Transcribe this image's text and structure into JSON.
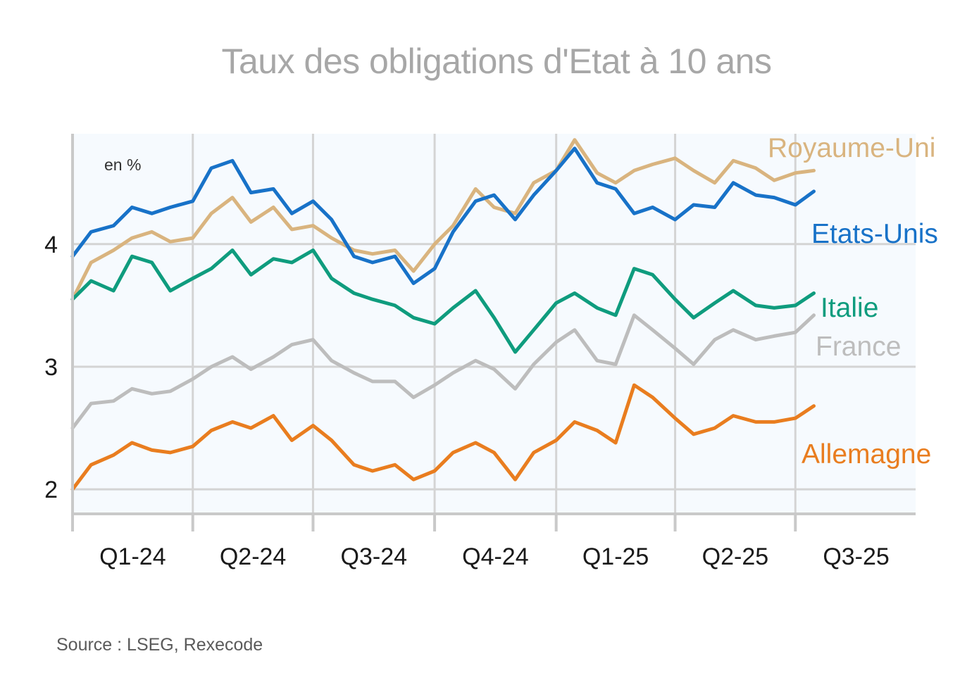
{
  "title": "Taux des obligations d'Etat à 10 ans",
  "source": "Source : LSEG, Rexecode",
  "chart_data": {
    "type": "line",
    "title": "Taux des obligations d'Etat à 10 ans",
    "unit_label": "en %",
    "xlabel": "",
    "ylabel": "",
    "x_categories": [
      "Q1-24",
      "Q2-24",
      "Q3-24",
      "Q4-24",
      "Q1-25",
      "Q2-25",
      "Q3-25"
    ],
    "x_range": [
      "2024-01-01",
      "2025-09-30"
    ],
    "ylim": [
      1.8,
      4.9
    ],
    "y_ticks": [
      2,
      3,
      4
    ],
    "grid": true,
    "series": [
      {
        "name": "Royaume-Uni",
        "color": "#d9b47f",
        "x": [
          "2024-01-01",
          "2024-01-15",
          "2024-02-01",
          "2024-02-15",
          "2024-03-01",
          "2024-03-15",
          "2024-04-01",
          "2024-04-15",
          "2024-05-01",
          "2024-05-15",
          "2024-06-01",
          "2024-06-15",
          "2024-07-01",
          "2024-07-15",
          "2024-08-01",
          "2024-08-15",
          "2024-09-01",
          "2024-09-15",
          "2024-10-01",
          "2024-10-15",
          "2024-11-01",
          "2024-11-15",
          "2024-12-01",
          "2024-12-15",
          "2025-01-01",
          "2025-01-15",
          "2025-02-01",
          "2025-02-15",
          "2025-03-01",
          "2025-03-15",
          "2025-04-01",
          "2025-04-15",
          "2025-05-01",
          "2025-05-15",
          "2025-06-01",
          "2025-06-15",
          "2025-07-01",
          "2025-07-15"
        ],
        "values": [
          3.55,
          3.85,
          3.95,
          4.05,
          4.1,
          4.02,
          4.05,
          4.25,
          4.38,
          4.18,
          4.3,
          4.12,
          4.15,
          4.05,
          3.95,
          3.92,
          3.95,
          3.78,
          4.0,
          4.15,
          4.45,
          4.3,
          4.25,
          4.5,
          4.6,
          4.85,
          4.58,
          4.5,
          4.6,
          4.65,
          4.7,
          4.6,
          4.5,
          4.68,
          4.62,
          4.52,
          4.58,
          4.6
        ]
      },
      {
        "name": "Etats-Unis",
        "color": "#1872c8",
        "x": [
          "2024-01-01",
          "2024-01-15",
          "2024-02-01",
          "2024-02-15",
          "2024-03-01",
          "2024-03-15",
          "2024-04-01",
          "2024-04-15",
          "2024-05-01",
          "2024-05-15",
          "2024-06-01",
          "2024-06-15",
          "2024-07-01",
          "2024-07-15",
          "2024-08-01",
          "2024-08-15",
          "2024-09-01",
          "2024-09-15",
          "2024-10-01",
          "2024-10-15",
          "2024-11-01",
          "2024-11-15",
          "2024-12-01",
          "2024-12-15",
          "2025-01-01",
          "2025-01-15",
          "2025-02-01",
          "2025-02-15",
          "2025-03-01",
          "2025-03-15",
          "2025-04-01",
          "2025-04-15",
          "2025-05-01",
          "2025-05-15",
          "2025-06-01",
          "2025-06-15",
          "2025-07-01",
          "2025-07-15"
        ],
        "values": [
          3.9,
          4.1,
          4.15,
          4.3,
          4.25,
          4.3,
          4.35,
          4.62,
          4.68,
          4.42,
          4.45,
          4.25,
          4.35,
          4.2,
          3.9,
          3.85,
          3.9,
          3.68,
          3.8,
          4.1,
          4.35,
          4.4,
          4.2,
          4.4,
          4.6,
          4.78,
          4.5,
          4.45,
          4.25,
          4.3,
          4.2,
          4.32,
          4.3,
          4.5,
          4.4,
          4.38,
          4.32,
          4.43
        ]
      },
      {
        "name": "Italie",
        "color": "#0f9c7e",
        "x": [
          "2024-01-01",
          "2024-01-15",
          "2024-02-01",
          "2024-02-15",
          "2024-03-01",
          "2024-03-15",
          "2024-04-01",
          "2024-04-15",
          "2024-05-01",
          "2024-05-15",
          "2024-06-01",
          "2024-06-15",
          "2024-07-01",
          "2024-07-15",
          "2024-08-01",
          "2024-08-15",
          "2024-09-01",
          "2024-09-15",
          "2024-10-01",
          "2024-10-15",
          "2024-11-01",
          "2024-11-15",
          "2024-12-01",
          "2024-12-15",
          "2025-01-01",
          "2025-01-15",
          "2025-02-01",
          "2025-02-15",
          "2025-03-01",
          "2025-03-15",
          "2025-04-01",
          "2025-04-15",
          "2025-05-01",
          "2025-05-15",
          "2025-06-01",
          "2025-06-15",
          "2025-07-01",
          "2025-07-15"
        ],
        "values": [
          3.55,
          3.7,
          3.62,
          3.9,
          3.85,
          3.62,
          3.72,
          3.8,
          3.95,
          3.75,
          3.88,
          3.85,
          3.95,
          3.72,
          3.6,
          3.55,
          3.5,
          3.4,
          3.35,
          3.48,
          3.62,
          3.4,
          3.12,
          3.3,
          3.52,
          3.6,
          3.48,
          3.42,
          3.8,
          3.75,
          3.55,
          3.4,
          3.52,
          3.62,
          3.5,
          3.48,
          3.5,
          3.6
        ]
      },
      {
        "name": "France",
        "color": "#bdbdbd",
        "x": [
          "2024-01-01",
          "2024-01-15",
          "2024-02-01",
          "2024-02-15",
          "2024-03-01",
          "2024-03-15",
          "2024-04-01",
          "2024-04-15",
          "2024-05-01",
          "2024-05-15",
          "2024-06-01",
          "2024-06-15",
          "2024-07-01",
          "2024-07-15",
          "2024-08-01",
          "2024-08-15",
          "2024-09-01",
          "2024-09-15",
          "2024-10-01",
          "2024-10-15",
          "2024-11-01",
          "2024-11-15",
          "2024-12-01",
          "2024-12-15",
          "2025-01-01",
          "2025-01-15",
          "2025-02-01",
          "2025-02-15",
          "2025-03-01",
          "2025-03-15",
          "2025-04-01",
          "2025-04-15",
          "2025-05-01",
          "2025-05-15",
          "2025-06-01",
          "2025-06-15",
          "2025-07-01",
          "2025-07-15"
        ],
        "values": [
          2.5,
          2.7,
          2.72,
          2.82,
          2.78,
          2.8,
          2.9,
          3.0,
          3.08,
          2.98,
          3.08,
          3.18,
          3.22,
          3.05,
          2.95,
          2.88,
          2.88,
          2.75,
          2.85,
          2.95,
          3.05,
          2.98,
          2.82,
          3.02,
          3.2,
          3.3,
          3.05,
          3.02,
          3.42,
          3.3,
          3.15,
          3.02,
          3.22,
          3.3,
          3.22,
          3.25,
          3.28,
          3.42
        ]
      },
      {
        "name": "Allemagne",
        "color": "#e97d1f",
        "x": [
          "2024-01-01",
          "2024-01-15",
          "2024-02-01",
          "2024-02-15",
          "2024-03-01",
          "2024-03-15",
          "2024-04-01",
          "2024-04-15",
          "2024-05-01",
          "2024-05-15",
          "2024-06-01",
          "2024-06-15",
          "2024-07-01",
          "2024-07-15",
          "2024-08-01",
          "2024-08-15",
          "2024-09-01",
          "2024-09-15",
          "2024-10-01",
          "2024-10-15",
          "2024-11-01",
          "2024-11-15",
          "2024-12-01",
          "2024-12-15",
          "2025-01-01",
          "2025-01-15",
          "2025-02-01",
          "2025-02-15",
          "2025-03-01",
          "2025-03-15",
          "2025-04-01",
          "2025-04-15",
          "2025-05-01",
          "2025-05-15",
          "2025-06-01",
          "2025-06-15",
          "2025-07-01",
          "2025-07-15"
        ],
        "values": [
          2.0,
          2.2,
          2.28,
          2.38,
          2.32,
          2.3,
          2.35,
          2.48,
          2.55,
          2.5,
          2.6,
          2.4,
          2.52,
          2.4,
          2.2,
          2.15,
          2.2,
          2.08,
          2.15,
          2.3,
          2.38,
          2.3,
          2.08,
          2.3,
          2.4,
          2.55,
          2.48,
          2.38,
          2.85,
          2.75,
          2.58,
          2.45,
          2.5,
          2.6,
          2.55,
          2.55,
          2.58,
          2.68
        ]
      }
    ]
  }
}
